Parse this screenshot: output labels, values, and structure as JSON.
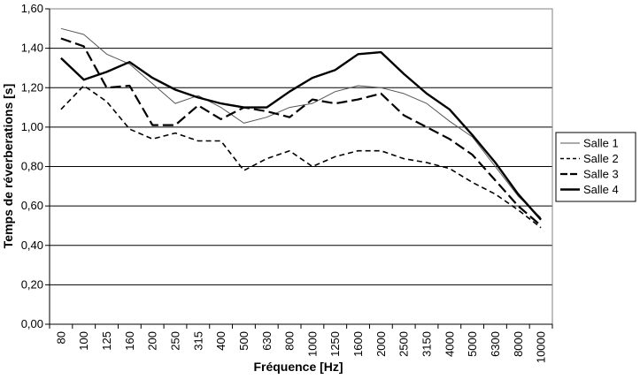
{
  "chart_data": {
    "type": "line",
    "xlabel": "Fréquence [Hz]",
    "ylabel": "Temps de réverberations [s]",
    "ylim": [
      0,
      1.6
    ],
    "ystep": 0.2,
    "grid": "horizontal",
    "legend_position": "right",
    "y_tick_labels": [
      "0,00",
      "0,20",
      "0,40",
      "0,60",
      "0,80",
      "1,00",
      "1,20",
      "1,40",
      "1,60"
    ],
    "categories": [
      "80",
      "100",
      "125",
      "160",
      "200",
      "250",
      "315",
      "400",
      "500",
      "630",
      "800",
      "1000",
      "1250",
      "1600",
      "2000",
      "2500",
      "3150",
      "4000",
      "5000",
      "6300",
      "8000",
      "10000"
    ],
    "series": [
      {
        "name": "Salle 1",
        "style": "thin",
        "color": "#555555",
        "values": [
          1.5,
          1.47,
          1.37,
          1.32,
          1.22,
          1.12,
          1.16,
          1.1,
          1.02,
          1.05,
          1.1,
          1.12,
          1.18,
          1.21,
          1.2,
          1.17,
          1.12,
          1.03,
          0.95,
          0.8,
          0.65,
          0.54
        ]
      },
      {
        "name": "Salle 2",
        "style": "dashed",
        "color": "#000000",
        "values": [
          1.09,
          1.21,
          1.13,
          0.99,
          0.94,
          0.97,
          0.93,
          0.93,
          0.78,
          0.84,
          0.88,
          0.8,
          0.85,
          0.88,
          0.88,
          0.84,
          0.82,
          0.79,
          0.72,
          0.66,
          0.58,
          0.49
        ]
      },
      {
        "name": "Salle 3",
        "style": "longdash",
        "color": "#000000",
        "values": [
          1.45,
          1.41,
          1.2,
          1.21,
          1.01,
          1.01,
          1.11,
          1.04,
          1.1,
          1.08,
          1.05,
          1.14,
          1.12,
          1.14,
          1.17,
          1.06,
          1.0,
          0.94,
          0.86,
          0.73,
          0.6,
          0.5
        ]
      },
      {
        "name": "Salle 4",
        "style": "thick",
        "color": "#000000",
        "values": [
          1.35,
          1.24,
          1.28,
          1.33,
          1.25,
          1.19,
          1.15,
          1.12,
          1.1,
          1.1,
          1.18,
          1.25,
          1.29,
          1.37,
          1.38,
          1.27,
          1.17,
          1.09,
          0.96,
          0.82,
          0.66,
          0.53
        ]
      }
    ]
  }
}
